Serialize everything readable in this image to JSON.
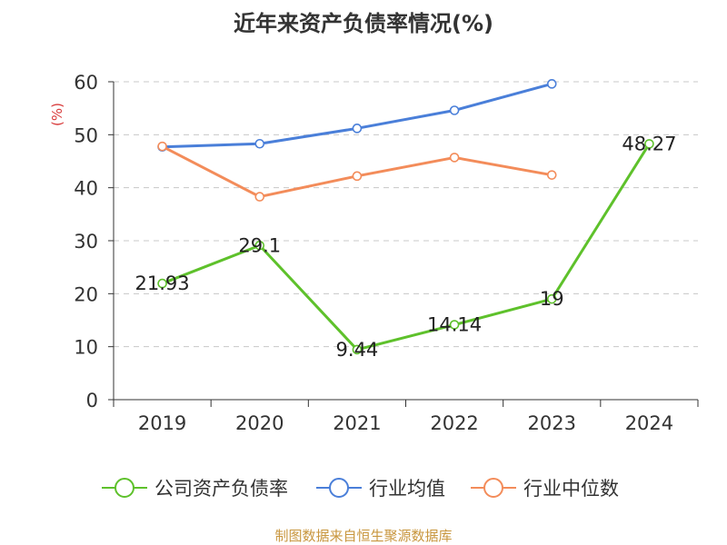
{
  "chart_data": {
    "type": "line",
    "title": "近年来资产负债率情况(%)",
    "ylabel": "(%)",
    "xlabel": "",
    "categories": [
      "2019",
      "2020",
      "2021",
      "2022",
      "2023",
      "2024"
    ],
    "ylim": [
      0,
      60
    ],
    "yticks": [
      0,
      10,
      20,
      30,
      40,
      50,
      60
    ],
    "grid": true,
    "legend_position": "bottom",
    "series": [
      {
        "name": "公司资产负债率",
        "color": "#5ec12b",
        "values": [
          21.93,
          29.1,
          9.44,
          14.14,
          19,
          48.27
        ],
        "labels": [
          "21.93",
          "29.1",
          "9.44",
          "14.14",
          "19",
          "48.27"
        ]
      },
      {
        "name": "行业均值",
        "color": "#4a7fd9",
        "values": [
          47.7,
          48.3,
          51.2,
          54.6,
          59.6,
          null
        ],
        "labels": null
      },
      {
        "name": "行业中位数",
        "color": "#f38c5a",
        "values": [
          47.8,
          38.3,
          42.2,
          45.7,
          42.4,
          null
        ],
        "labels": null
      }
    ]
  },
  "source": "制图数据来自恒生聚源数据库"
}
